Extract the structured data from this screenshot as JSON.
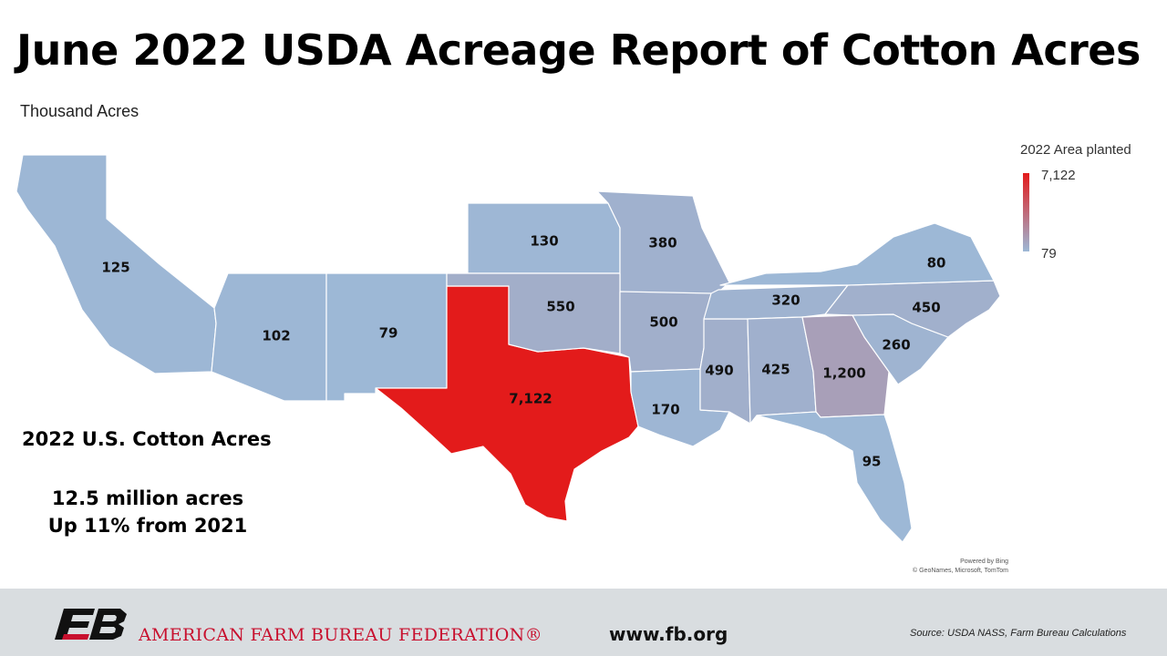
{
  "title": "June 2022 USDA Acreage Report of Cotton Acres",
  "subtitle": "Thousand Acres",
  "legend": {
    "title": "2022 Area planted",
    "max_label": "7,122",
    "min_label": "79",
    "max_color": "#e31b1b",
    "min_color": "#9db8d6"
  },
  "chart_data": {
    "type": "choropleth",
    "title": "June 2022 USDA Acreage Report of Cotton Acres",
    "unit": "Thousand Acres",
    "legend_title": "2022 Area planted",
    "scale": {
      "min": 79,
      "max": 7122,
      "min_color": "#9db8d6",
      "max_color": "#e31b1b"
    },
    "regions": [
      {
        "state": "California",
        "value": 125,
        "label": "125"
      },
      {
        "state": "Arizona",
        "value": 102,
        "label": "102"
      },
      {
        "state": "New Mexico",
        "value": 79,
        "label": "79"
      },
      {
        "state": "Texas",
        "value": 7122,
        "label": "7,122"
      },
      {
        "state": "Kansas",
        "value": 130,
        "label": "130"
      },
      {
        "state": "Missouri",
        "value": 380,
        "label": "380"
      },
      {
        "state": "Oklahoma",
        "value": 550,
        "label": "550"
      },
      {
        "state": "Arkansas",
        "value": 500,
        "label": "500"
      },
      {
        "state": "Louisiana",
        "value": 170,
        "label": "170"
      },
      {
        "state": "Mississippi",
        "value": 490,
        "label": "490"
      },
      {
        "state": "Tennessee",
        "value": 320,
        "label": "320"
      },
      {
        "state": "Alabama",
        "value": 425,
        "label": "425"
      },
      {
        "state": "Georgia",
        "value": 1200,
        "label": "1,200"
      },
      {
        "state": "Florida",
        "value": 95,
        "label": "95"
      },
      {
        "state": "South Carolina",
        "value": 260,
        "label": "260"
      },
      {
        "state": "North Carolina",
        "value": 450,
        "label": "450"
      },
      {
        "state": "Virginia",
        "value": 80,
        "label": "80"
      }
    ]
  },
  "summary": {
    "title": "2022 U.S. Cotton Acres",
    "line1": "12.5 million acres",
    "line2": "Up 11% from 2021"
  },
  "attribution": {
    "line1": "Powered by Bing",
    "line2": "© GeoNames, Microsoft, TomTom"
  },
  "footer": {
    "org_name": "AMERICAN FARM BUREAU FEDERATION®",
    "url": "www.fb.org",
    "source": "Source: USDA NASS, Farm Bureau Calculations",
    "logo_icon": "fb-logo-icon",
    "brand_color": "#c8102e"
  }
}
